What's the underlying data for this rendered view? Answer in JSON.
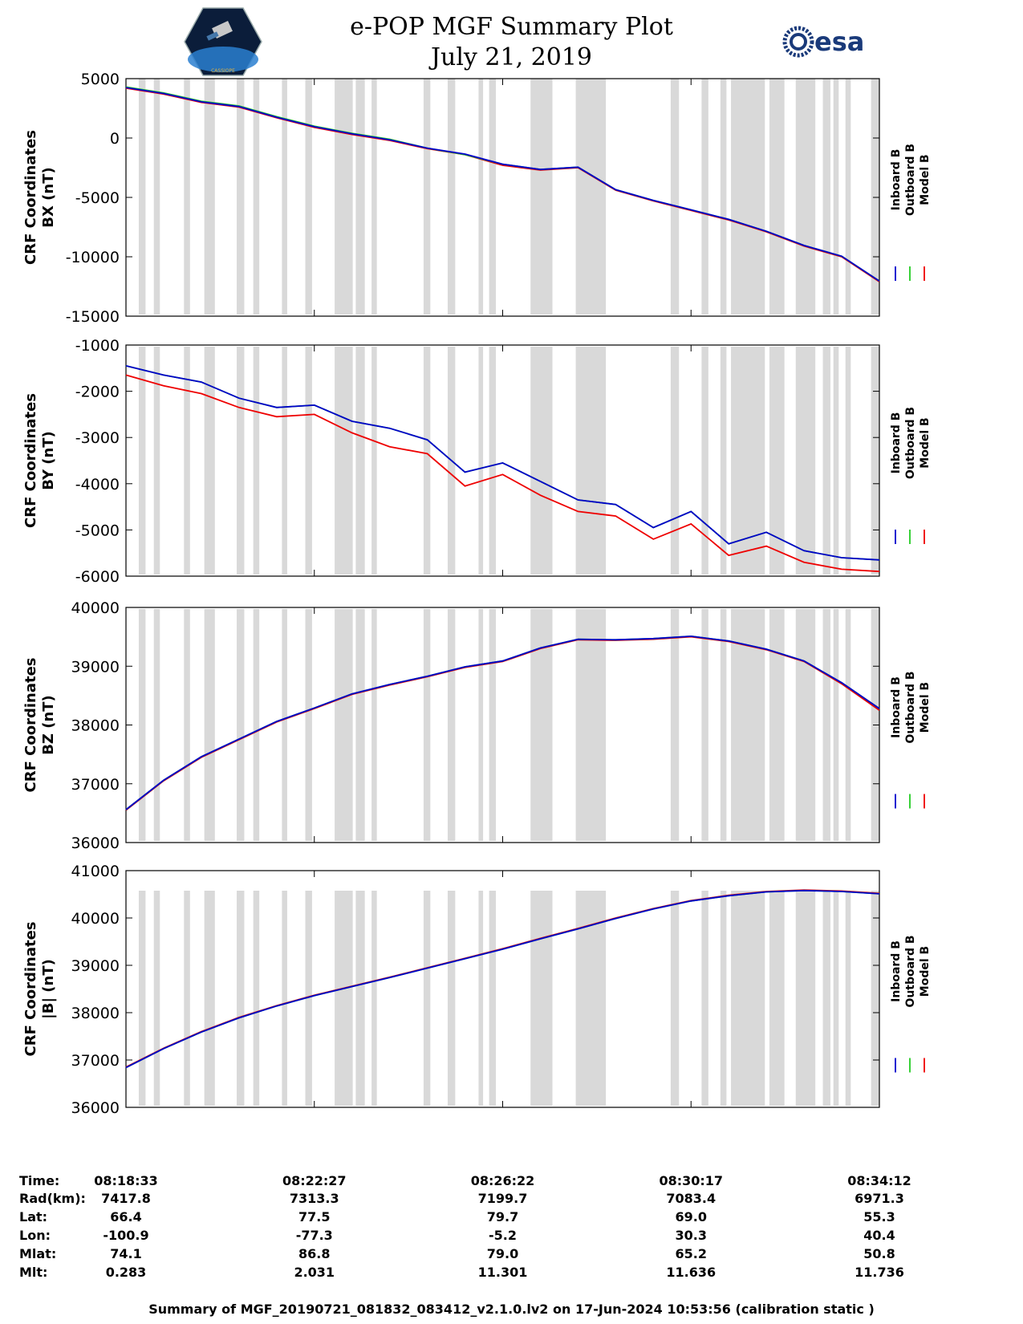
{
  "header": {
    "title_line1": "e-POP MGF Summary Plot",
    "title_line2": "July 21, 2019",
    "logo_left_caption": "CASSIOPE",
    "logo_right_text": "esa"
  },
  "colors": {
    "inboard": "#0000cc",
    "outboard": "#22cc22",
    "model": "#ee0000",
    "shade": "#d9d9d9"
  },
  "chart_data": [
    {
      "type": "line",
      "ylabel_line1": "CRF Coordinates",
      "ylabel_line2": "BX (nT)",
      "ylim": [
        -15000,
        5000
      ],
      "ytick_labels": [
        "5000",
        "0",
        "-5000",
        "-10000",
        "-15000"
      ],
      "ytick_values": [
        5000,
        0,
        -5000,
        -10000,
        -15000
      ],
      "legend": [
        "Inboard B",
        "Outboard B",
        "Model B"
      ],
      "x": [
        0,
        0.05,
        0.1,
        0.15,
        0.2,
        0.25,
        0.3,
        0.35,
        0.4,
        0.45,
        0.5,
        0.55,
        0.6,
        0.65,
        0.7,
        0.75,
        0.8,
        0.85,
        0.9,
        0.95,
        1.0
      ],
      "series": [
        {
          "name": "Model B",
          "values": [
            4200,
            3700,
            3000,
            2600,
            1700,
            900,
            300,
            -200,
            -900,
            -1400,
            -2300,
            -2700,
            -2500,
            -4400,
            -5300,
            -6100,
            -6900,
            -7900,
            -9100,
            -10000,
            -12100
          ]
        },
        {
          "name": "Outboard B",
          "values": [
            4300,
            3800,
            3100,
            2700,
            1800,
            1000,
            400,
            -100,
            -850,
            -1400,
            -2200,
            -2650,
            -2450,
            -4350,
            -5250,
            -6050,
            -6850,
            -7850,
            -9050,
            -9950,
            -12050
          ]
        },
        {
          "name": "Inboard B",
          "values": [
            4250,
            3750,
            3050,
            2650,
            1750,
            950,
            350,
            -150,
            -850,
            -1350,
            -2200,
            -2650,
            -2450,
            -4350,
            -5250,
            -6050,
            -6850,
            -7850,
            -9050,
            -9950,
            -12050
          ]
        }
      ]
    },
    {
      "type": "line",
      "ylabel_line1": "CRF Coordinates",
      "ylabel_line2": "BY (nT)",
      "ylim": [
        -6000,
        -1000
      ],
      "ytick_labels": [
        "-1000",
        "-2000",
        "-3000",
        "-4000",
        "-5000",
        "-6000"
      ],
      "ytick_values": [
        -1000,
        -2000,
        -3000,
        -4000,
        -5000,
        -6000
      ],
      "legend": [
        "Inboard B",
        "Outboard B",
        "Model B"
      ],
      "x": [
        0,
        0.05,
        0.1,
        0.15,
        0.2,
        0.25,
        0.3,
        0.35,
        0.4,
        0.45,
        0.5,
        0.55,
        0.6,
        0.65,
        0.7,
        0.75,
        0.8,
        0.85,
        0.9,
        0.95,
        1.0
      ],
      "series": [
        {
          "name": "Model B",
          "values": [
            -1650,
            -1880,
            -2050,
            -2350,
            -2550,
            -2500,
            -2900,
            -3200,
            -3350,
            -4050,
            -3800,
            -4250,
            -4600,
            -4700,
            -5200,
            -4870,
            -5550,
            -5350,
            -5700,
            -5850,
            -5900
          ]
        },
        {
          "name": "Outboard B",
          "values": [
            -1450,
            -1650,
            -1800,
            -2150,
            -2350,
            -2300,
            -2650,
            -2800,
            -3050,
            -3750,
            -3550,
            -3950,
            -4350,
            -4450,
            -4950,
            -4600,
            -5300,
            -5050,
            -5450,
            -5600,
            -5650
          ]
        },
        {
          "name": "Inboard B",
          "values": [
            -1450,
            -1650,
            -1800,
            -2150,
            -2350,
            -2300,
            -2650,
            -2800,
            -3050,
            -3750,
            -3550,
            -3950,
            -4350,
            -4450,
            -4950,
            -4600,
            -5300,
            -5050,
            -5450,
            -5600,
            -5650
          ]
        }
      ]
    },
    {
      "type": "line",
      "ylabel_line1": "CRF Coordinates",
      "ylabel_line2": "BZ (nT)",
      "ylim": [
        36000,
        40000
      ],
      "ytick_labels": [
        "40000",
        "39000",
        "38000",
        "37000",
        "36000"
      ],
      "ytick_values": [
        40000,
        39000,
        38000,
        37000,
        36000
      ],
      "legend": [
        "Inboard B",
        "Outboard B",
        "Model B"
      ],
      "x": [
        0,
        0.05,
        0.1,
        0.15,
        0.2,
        0.25,
        0.3,
        0.35,
        0.4,
        0.45,
        0.5,
        0.55,
        0.6,
        0.65,
        0.7,
        0.75,
        0.8,
        0.85,
        0.9,
        0.95,
        1.0
      ],
      "series": [
        {
          "name": "Model B",
          "values": [
            36550,
            37050,
            37450,
            37750,
            38050,
            38280,
            38520,
            38680,
            38820,
            38980,
            39080,
            39300,
            39450,
            39440,
            39460,
            39500,
            39420,
            39280,
            39080,
            38700,
            38250
          ]
        },
        {
          "name": "Outboard B",
          "values": [
            36560,
            37060,
            37460,
            37760,
            38060,
            38290,
            38530,
            38690,
            38830,
            38990,
            39090,
            39310,
            39460,
            39450,
            39470,
            39510,
            39430,
            39290,
            39090,
            38720,
            38280
          ]
        },
        {
          "name": "Inboard B",
          "values": [
            36560,
            37060,
            37460,
            37760,
            38060,
            38290,
            38530,
            38690,
            38830,
            38990,
            39090,
            39310,
            39460,
            39450,
            39470,
            39510,
            39430,
            39290,
            39090,
            38720,
            38280
          ]
        }
      ]
    },
    {
      "type": "line",
      "ylabel_line1": "CRF Coordinates",
      "ylabel_line2": "|B| (nT)",
      "ylim": [
        36000,
        41000
      ],
      "ytick_labels": [
        "41000",
        "40000",
        "39000",
        "38000",
        "37000",
        "36000"
      ],
      "ytick_values": [
        41000,
        40000,
        39000,
        38000,
        37000,
        36000
      ],
      "legend": [
        "Inboard B",
        "Outboard B",
        "Model B"
      ],
      "x": [
        0,
        0.05,
        0.1,
        0.15,
        0.2,
        0.25,
        0.3,
        0.35,
        0.4,
        0.45,
        0.5,
        0.55,
        0.6,
        0.65,
        0.7,
        0.75,
        0.8,
        0.85,
        0.9,
        0.95,
        1.0
      ],
      "series": [
        {
          "name": "Model B",
          "values": [
            36850,
            37250,
            37600,
            37900,
            38150,
            38370,
            38560,
            38750,
            38950,
            39150,
            39350,
            39570,
            39780,
            40000,
            40200,
            40370,
            40480,
            40560,
            40590,
            40570,
            40520
          ]
        },
        {
          "name": "Outboard B",
          "values": [
            36840,
            37240,
            37590,
            37890,
            38140,
            38360,
            38550,
            38740,
            38940,
            39140,
            39340,
            39560,
            39770,
            39990,
            40190,
            40360,
            40470,
            40550,
            40580,
            40560,
            40510
          ]
        },
        {
          "name": "Inboard B",
          "values": [
            36840,
            37240,
            37590,
            37890,
            38140,
            38360,
            38550,
            38740,
            38940,
            39140,
            39340,
            39560,
            39770,
            39990,
            40190,
            40360,
            40470,
            40550,
            40580,
            40560,
            40510
          ]
        }
      ]
    }
  ],
  "shaded_intervals": [
    [
      0.017,
      0.026
    ],
    [
      0.037,
      0.045
    ],
    [
      0.077,
      0.085
    ],
    [
      0.104,
      0.118
    ],
    [
      0.147,
      0.157
    ],
    [
      0.169,
      0.177
    ],
    [
      0.207,
      0.214
    ],
    [
      0.238,
      0.247
    ],
    [
      0.277,
      0.301
    ],
    [
      0.305,
      0.317
    ],
    [
      0.326,
      0.333
    ],
    [
      0.395,
      0.404
    ],
    [
      0.427,
      0.437
    ],
    [
      0.468,
      0.474
    ],
    [
      0.482,
      0.491
    ],
    [
      0.537,
      0.566
    ],
    [
      0.597,
      0.637
    ],
    [
      0.723,
      0.734
    ],
    [
      0.764,
      0.773
    ],
    [
      0.789,
      0.797
    ],
    [
      0.803,
      0.848
    ],
    [
      0.854,
      0.874
    ],
    [
      0.889,
      0.915
    ],
    [
      0.925,
      0.935
    ],
    [
      0.939,
      0.946
    ],
    [
      0.955,
      0.962
    ],
    [
      0.989,
      1.0
    ]
  ],
  "ephemeris": {
    "row_labels": [
      "Time:",
      "Rad(km):",
      "Lat:",
      "Lon:",
      "Mlat:",
      "Mlt:"
    ],
    "columns": [
      [
        "08:18:33",
        "7417.8",
        "66.4",
        "-100.9",
        "74.1",
        "0.283"
      ],
      [
        "08:22:27",
        "7313.3",
        "77.5",
        "-77.3",
        "86.8",
        "2.031"
      ],
      [
        "08:26:22",
        "7199.7",
        "79.7",
        "-5.2",
        "79.0",
        "11.301"
      ],
      [
        "08:30:17",
        "7083.4",
        "69.0",
        "30.3",
        "65.2",
        "11.636"
      ],
      [
        "08:34:12",
        "6971.3",
        "55.3",
        "40.4",
        "50.8",
        "11.736"
      ]
    ]
  },
  "footer": "Summary of MGF_20190721_081832_083412_v2.1.0.lv2 on 17-Jun-2024 10:53:56 (calibration static )"
}
